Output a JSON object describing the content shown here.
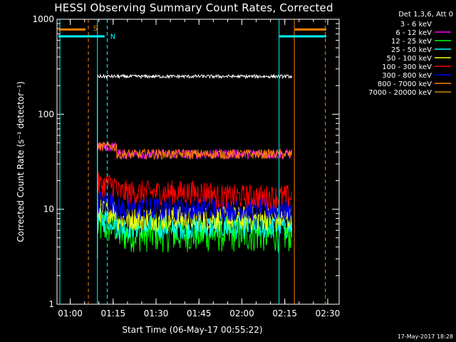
{
  "chart_data": {
    "type": "line",
    "title": "HESSI Observing Summary Count Rates, Corrected",
    "xlabel": "Start Time (06-May-17 00:55:22)",
    "ylabel": "Corrected Count Rate (s⁻¹ detector⁻¹)",
    "y_scale": "log",
    "xlim": [
      "00:55:22",
      "02:34:00"
    ],
    "ylim": [
      1,
      1000
    ],
    "x_ticks": [
      "01:00",
      "01:15",
      "01:30",
      "01:45",
      "02:00",
      "02:15",
      "02:30"
    ],
    "y_ticks": [
      "1",
      "10",
      "100",
      "1000"
    ],
    "legend_title": "Det 1,3,6, Att 0",
    "legend_position": "top-right, outside plot",
    "data_interval": [
      "01:09:30",
      "02:17:40"
    ],
    "series": [
      {
        "name": "3 - 6 keV",
        "color": "#000000",
        "approx_level": 250
      },
      {
        "name": "6 - 12 keV",
        "color": "#ff00ff",
        "approx_level": 38
      },
      {
        "name": "12 - 25 keV",
        "color": "#00ff00",
        "approx_level": 5.5
      },
      {
        "name": "25 - 50 keV",
        "color": "#00ffff",
        "approx_level": 6.5
      },
      {
        "name": "50 - 100 keV",
        "color": "#ffff00",
        "approx_level": 8
      },
      {
        "name": "100 - 300 keV",
        "color": "#ff0000",
        "approx_level": 15
      },
      {
        "name": "300 - 800 keV",
        "color": "#0000ff",
        "approx_level": 10
      },
      {
        "name": "800 - 7000 keV",
        "color": "#ff8000",
        "approx_level": 38
      },
      {
        "name": "7000 - 20000 keV",
        "color": "#cc8800",
        "approx_level": 0
      }
    ],
    "markers": [
      {
        "label": "S",
        "color": "#ff8000"
      },
      {
        "label": "N",
        "color": "#00ffff"
      }
    ]
  },
  "timestamp": "17-May-2017 18:28"
}
